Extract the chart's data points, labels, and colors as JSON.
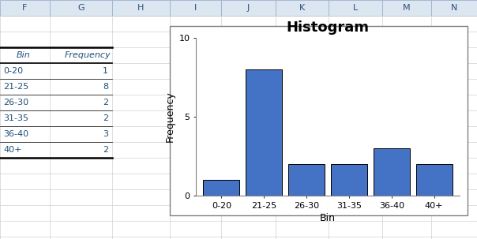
{
  "bins": [
    "0-20",
    "21-25",
    "26-30",
    "31-35",
    "36-40",
    "40+"
  ],
  "frequencies": [
    1,
    8,
    2,
    2,
    3,
    2
  ],
  "bar_color": "#4472C4",
  "bar_edgecolor": "#000000",
  "title": "Histogram",
  "xlabel": "Bin",
  "ylabel": "Frequency",
  "ylim": [
    0,
    10
  ],
  "yticks": [
    0,
    5,
    10
  ],
  "title_fontsize": 13,
  "title_fontweight": "bold",
  "label_fontsize": 9,
  "tick_fontsize": 8,
  "spreadsheet_bg": "#ffffff",
  "grid_color": "#d0d0d0",
  "col_header_bg": "#dce6f1",
  "col_header_text": "#2e4e7c",
  "col_header_border": "#9ab0cc",
  "col_labels": [
    "F",
    "G",
    "H",
    "I",
    "J",
    "K",
    "L",
    "M",
    "N"
  ],
  "table_header_color": "#1f4e79",
  "table_data_color": "#1f4e79",
  "chart_border_color": "#808080",
  "chart_bg": "#ffffff",
  "spine_color": "#808080"
}
